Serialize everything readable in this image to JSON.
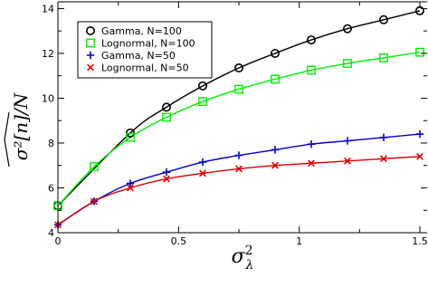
{
  "chart_data": {
    "type": "line",
    "xlabel": "σ",
    "xlabel_sup": "2",
    "xlabel_sub": "λ",
    "ylabel": "σ²[n]/N",
    "xlim": [
      0,
      1.53
    ],
    "ylim": [
      4,
      14.3
    ],
    "xticks": [
      0,
      0.5,
      1,
      1.5
    ],
    "xtick_labels": [
      "0",
      "0.5",
      "1",
      "1.5"
    ],
    "yticks": [
      4,
      6,
      8,
      10,
      12,
      14
    ],
    "ytick_labels": [
      "4",
      "6",
      "8",
      "10",
      "12",
      "14"
    ],
    "legend_position": "top-left",
    "series": [
      {
        "name": "Gamma, N=100",
        "color": "#000000",
        "marker": "circle",
        "x": [
          0,
          0.3,
          0.45,
          0.6,
          0.75,
          0.9,
          1.05,
          1.2,
          1.35,
          1.5
        ],
        "y": [
          5.2,
          8.45,
          9.6,
          10.55,
          11.35,
          12.0,
          12.6,
          13.1,
          13.5,
          13.9
        ]
      },
      {
        "name": "Lognormal, N=100",
        "color": "#00ee00",
        "marker": "square",
        "x": [
          0,
          0.15,
          0.3,
          0.45,
          0.6,
          0.75,
          0.9,
          1.05,
          1.2,
          1.35,
          1.5
        ],
        "y": [
          5.2,
          6.95,
          8.25,
          9.15,
          9.85,
          10.4,
          10.85,
          11.25,
          11.55,
          11.8,
          12.05
        ]
      },
      {
        "name": "Gamma, N=50",
        "color": "#0000cc",
        "marker": "plus",
        "x": [
          0,
          0.15,
          0.3,
          0.45,
          0.6,
          0.75,
          0.9,
          1.05,
          1.2,
          1.35,
          1.5
        ],
        "y": [
          4.35,
          5.4,
          6.2,
          6.7,
          7.15,
          7.45,
          7.7,
          7.95,
          8.1,
          8.25,
          8.4
        ]
      },
      {
        "name": "Lognormal, N=50",
        "color": "#dd0000",
        "marker": "x",
        "x": [
          0,
          0.15,
          0.3,
          0.45,
          0.6,
          0.75,
          0.9,
          1.05,
          1.2,
          1.35,
          1.5
        ],
        "y": [
          4.35,
          5.4,
          6.0,
          6.4,
          6.65,
          6.85,
          7.0,
          7.1,
          7.2,
          7.3,
          7.4
        ]
      }
    ]
  }
}
